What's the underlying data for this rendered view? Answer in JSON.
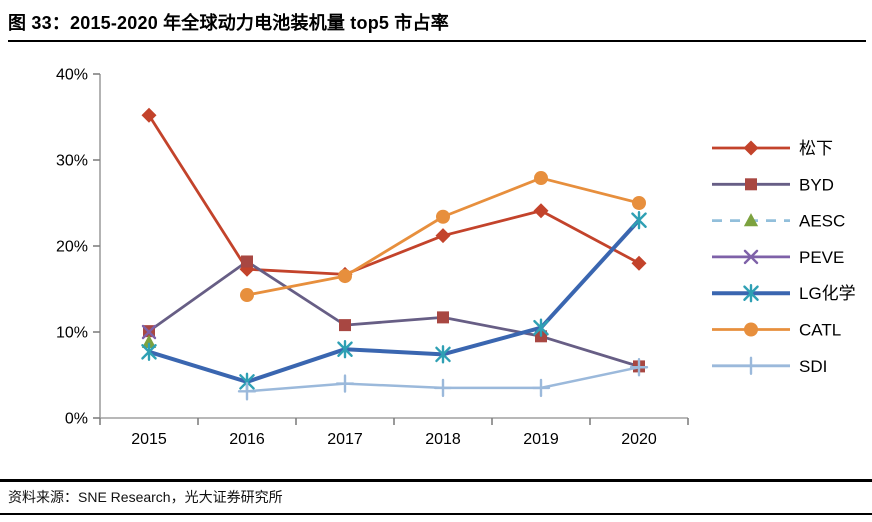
{
  "header": {
    "title": "图 33：2015-2020 年全球动力电池装机量 top5 市占率"
  },
  "footer": {
    "source": "资料来源：SNE Research，光大证券研究所"
  },
  "colors": {
    "axis": "#a0a0a0",
    "tick": "#808080",
    "label_text": "#000000",
    "divider": "#000000"
  },
  "chart_data": {
    "type": "line",
    "title": "图 33：2015-2020 年全球动力电池装机量 top5 市占率",
    "xlabel": "",
    "ylabel": "",
    "categories": [
      "2015",
      "2016",
      "2017",
      "2018",
      "2019",
      "2020"
    ],
    "ylim": [
      0,
      40
    ],
    "yticks": [
      0,
      10,
      20,
      30,
      40
    ],
    "ytick_labels": [
      "0%",
      "10%",
      "20%",
      "30%",
      "40%"
    ],
    "grid": false,
    "legend_position": "right",
    "series": [
      {
        "id": "panasonic",
        "name": "松下",
        "values": [
          35.2,
          17.3,
          16.7,
          21.2,
          24.1,
          18.0
        ],
        "color": "#c3432b",
        "marker": "diamond",
        "marker_color": "#c3432b",
        "line_width": 2.8,
        "dashed": false
      },
      {
        "id": "byd",
        "name": "BYD",
        "values": [
          10.1,
          18.2,
          10.8,
          11.7,
          9.5,
          6.0
        ],
        "color": "#675e85",
        "marker": "square",
        "marker_color": "#a84742",
        "line_width": 2.8,
        "dashed": false
      },
      {
        "id": "aesc",
        "name": "AESC",
        "values": [
          8.8,
          null,
          null,
          null,
          null,
          null
        ],
        "color": "#92bfdb",
        "marker": "triangle",
        "marker_color": "#7ca23f",
        "line_width": 2.5,
        "dashed": true
      },
      {
        "id": "peve",
        "name": "PEVE",
        "values": [
          10.0,
          null,
          null,
          null,
          null,
          null
        ],
        "color": "#7e61a8",
        "marker": "x",
        "marker_color": "#7e61a8",
        "line_width": 2.5,
        "dashed": false
      },
      {
        "id": "lg-chem",
        "name": "LG化学",
        "values": [
          7.7,
          4.2,
          8.0,
          7.4,
          10.5,
          23.0
        ],
        "color": "#3a66b0",
        "marker": "asterisk",
        "marker_color": "#2fa0b4",
        "line_width": 4.0,
        "dashed": false
      },
      {
        "id": "catl",
        "name": "CATL",
        "values": [
          null,
          14.3,
          16.5,
          23.4,
          27.9,
          25.0
        ],
        "color": "#e78f3d",
        "marker": "circle",
        "marker_color": "#e78f3d",
        "line_width": 2.8,
        "dashed": false
      },
      {
        "id": "sdi",
        "name": "SDI",
        "values": [
          null,
          3.1,
          4.0,
          3.5,
          3.5,
          5.9
        ],
        "color": "#9bb9db",
        "marker": "plus",
        "marker_color": "#9bb9db",
        "line_width": 2.5,
        "dashed": false
      }
    ]
  }
}
